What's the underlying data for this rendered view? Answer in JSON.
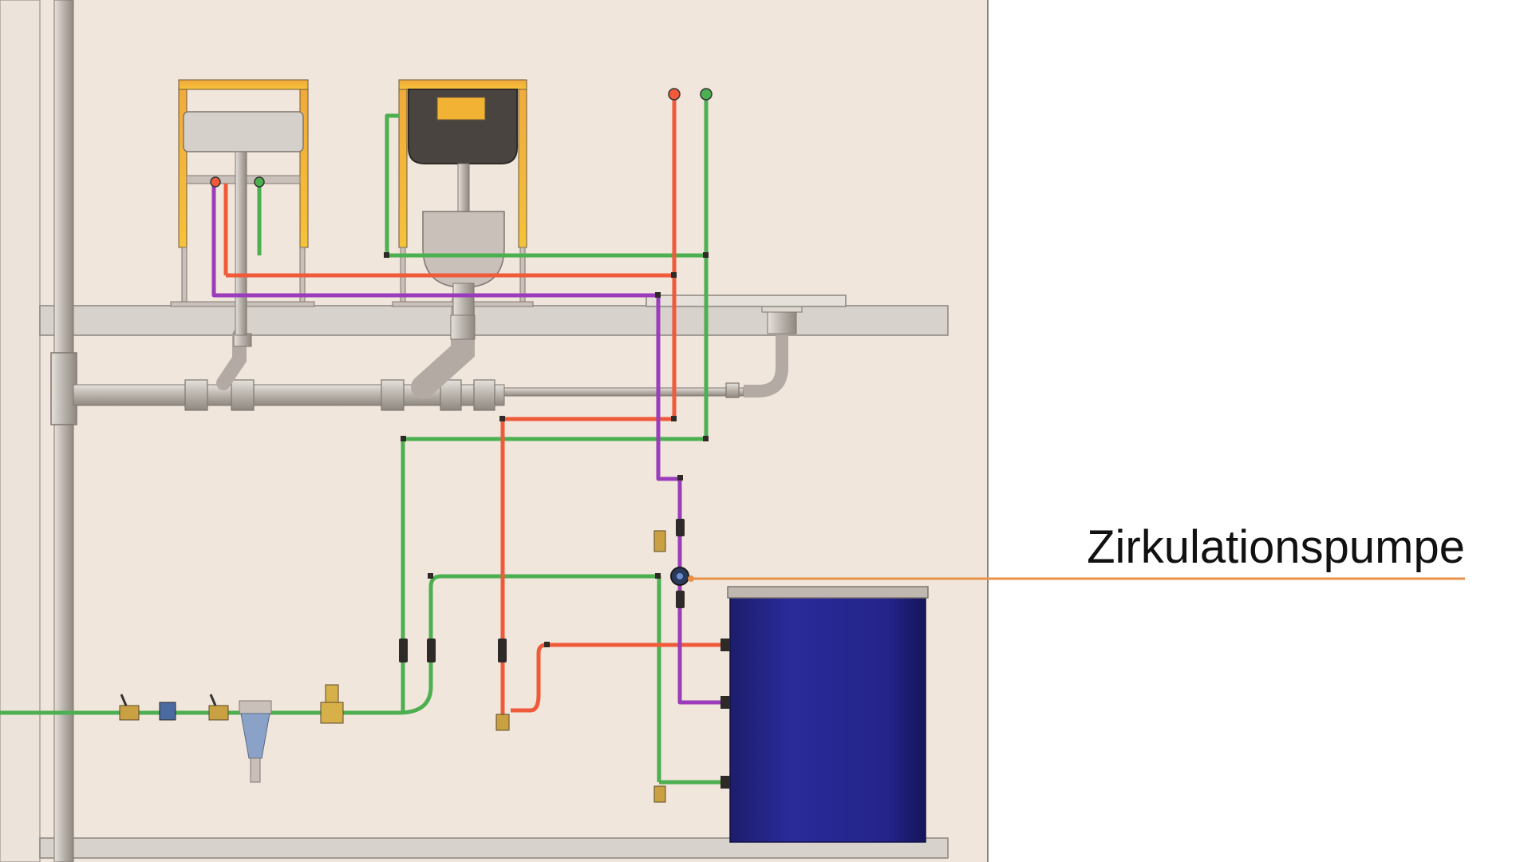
{
  "callout": {
    "label": "Zirkulationspumpe",
    "color": "#e8914a"
  },
  "colors": {
    "wall_background": "#f1e6dc",
    "cold_water": "#4caf50",
    "hot_water": "#ef5a3a",
    "circulation": "#9b3dbb",
    "drain_pipe": "#c9c1b9",
    "frame": "#f2b233",
    "tank": "#24248a",
    "floor": "#d8d2cc"
  },
  "icons": {
    "pump": "circulation-pump-icon",
    "valve": "shutoff-valve-icon",
    "filter": "water-filter-icon",
    "pressure_reducer": "pressure-reducer-icon",
    "tank": "hot-water-tank-icon"
  }
}
